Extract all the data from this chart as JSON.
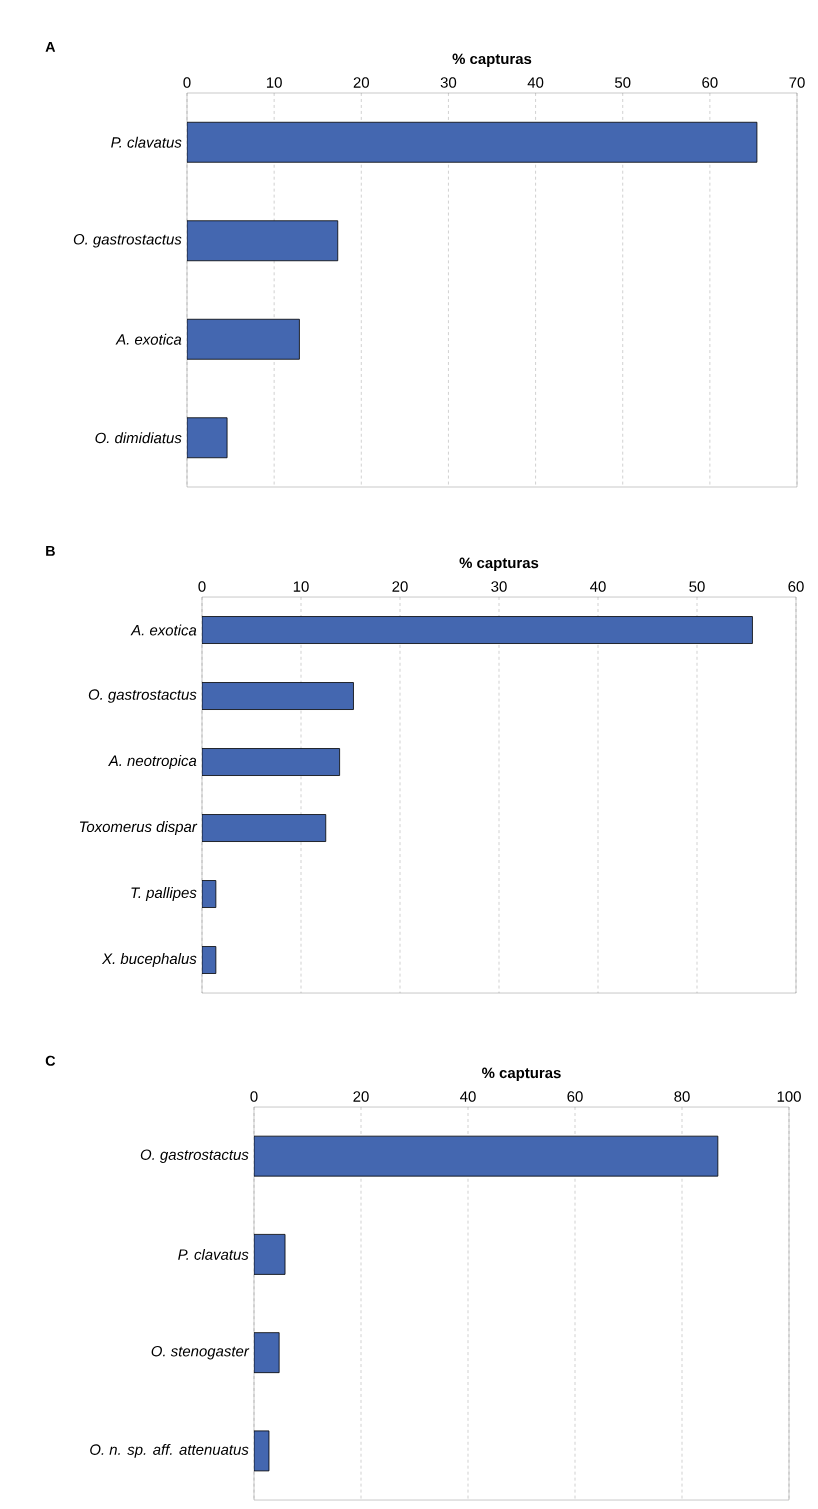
{
  "chart_data": [
    {
      "type": "bar",
      "orientation": "horizontal",
      "title": "A",
      "xlabel": "% capturas",
      "categories": [
        "P. clavatus",
        "O. gastrostactus",
        "A. exotica",
        "O. dimidiatus"
      ],
      "values": [
        65.4,
        17.3,
        12.9,
        4.6
      ],
      "color": "#4467b0",
      "xlim": [
        0,
        70
      ],
      "xticks": [
        0,
        10,
        20,
        30,
        40,
        50,
        60,
        70
      ],
      "grid": "x"
    },
    {
      "type": "bar",
      "orientation": "horizontal",
      "title": "B",
      "xlabel": "% capturas",
      "categories": [
        "A. exotica",
        "O. gastrostactus",
        "A. neotropica",
        "Toxomerus dispar",
        "T. pallipes",
        "X. bucephalus"
      ],
      "values": [
        55.6,
        15.3,
        13.9,
        12.5,
        1.4,
        1.4
      ],
      "color": "#4467b0",
      "xlim": [
        0,
        60
      ],
      "xticks": [
        0,
        10,
        20,
        30,
        40,
        50,
        60
      ],
      "grid": "x"
    },
    {
      "type": "bar",
      "orientation": "horizontal",
      "title": "C",
      "xlabel": "% capturas",
      "categories": [
        "O. gastrostactus",
        "P. clavatus",
        "O. stenogaster",
        "O. n. sp. aff. attenuatus"
      ],
      "values": [
        86.7,
        5.8,
        4.7,
        2.8
      ],
      "color": "#4467b0",
      "xlim": [
        0,
        100
      ],
      "xticks": [
        0,
        20,
        40,
        60,
        80,
        100
      ],
      "grid": "x"
    }
  ]
}
